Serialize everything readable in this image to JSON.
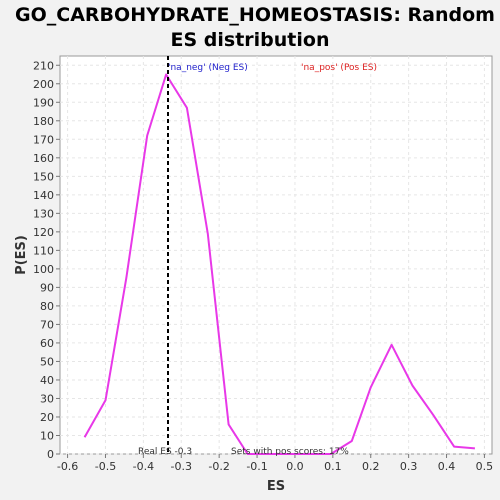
{
  "chart_data": {
    "type": "line",
    "title_lines": [
      "GO_CARBOHYDRATE_HOMEOSTASIS: Random",
      "ES distribution"
    ],
    "xlabel": "ES",
    "ylabel": "P(ES)",
    "xlim": [
      -0.62,
      0.52
    ],
    "ylim": [
      0,
      215
    ],
    "x_ticks": [
      -0.6,
      -0.5,
      -0.4,
      -0.3,
      -0.2,
      -0.1,
      0.0,
      0.1,
      0.2,
      0.3,
      0.4,
      0.5
    ],
    "x_tick_labels": [
      "-0.6",
      "-0.5",
      "-0.4",
      "-0.3",
      "-0.2",
      "-0.1",
      "0.0",
      "0.1",
      "0.2",
      "0.3",
      "0.4",
      "0.5"
    ],
    "y_ticks": [
      0,
      10,
      20,
      30,
      40,
      50,
      60,
      70,
      80,
      90,
      100,
      110,
      120,
      130,
      140,
      150,
      160,
      170,
      180,
      190,
      200,
      210
    ],
    "y_tick_labels": [
      "0",
      "10",
      "20",
      "30",
      "40",
      "50",
      "60",
      "70",
      "80",
      "90",
      "100",
      "110",
      "120",
      "130",
      "140",
      "150",
      "160",
      "170",
      "180",
      "190",
      "200",
      "210"
    ],
    "grid": true,
    "series": [
      {
        "color": "#e838e8",
        "x": [
          -0.555,
          -0.5,
          -0.445,
          -0.39,
          -0.34,
          -0.285,
          -0.23,
          -0.175,
          -0.125,
          -0.07,
          -0.015,
          0.04,
          0.095,
          0.15,
          0.2,
          0.255,
          0.31,
          0.365,
          0.42,
          0.475
        ],
        "y": [
          9,
          29,
          95,
          172,
          205,
          187,
          119,
          16,
          0,
          0,
          0,
          0,
          0,
          7,
          36,
          59,
          37,
          21,
          4,
          3
        ]
      }
    ],
    "legend": [
      {
        "text": "'na_neg' (Neg ES)",
        "color": "#2222cc"
      },
      {
        "text": "'na_pos' (Pos ES)",
        "color": "#dd2222"
      }
    ],
    "real_es": {
      "x": -0.335,
      "label": "Real ES -0.3",
      "color": "#000000"
    },
    "annotation": "Sets with pos scores: 17%"
  }
}
